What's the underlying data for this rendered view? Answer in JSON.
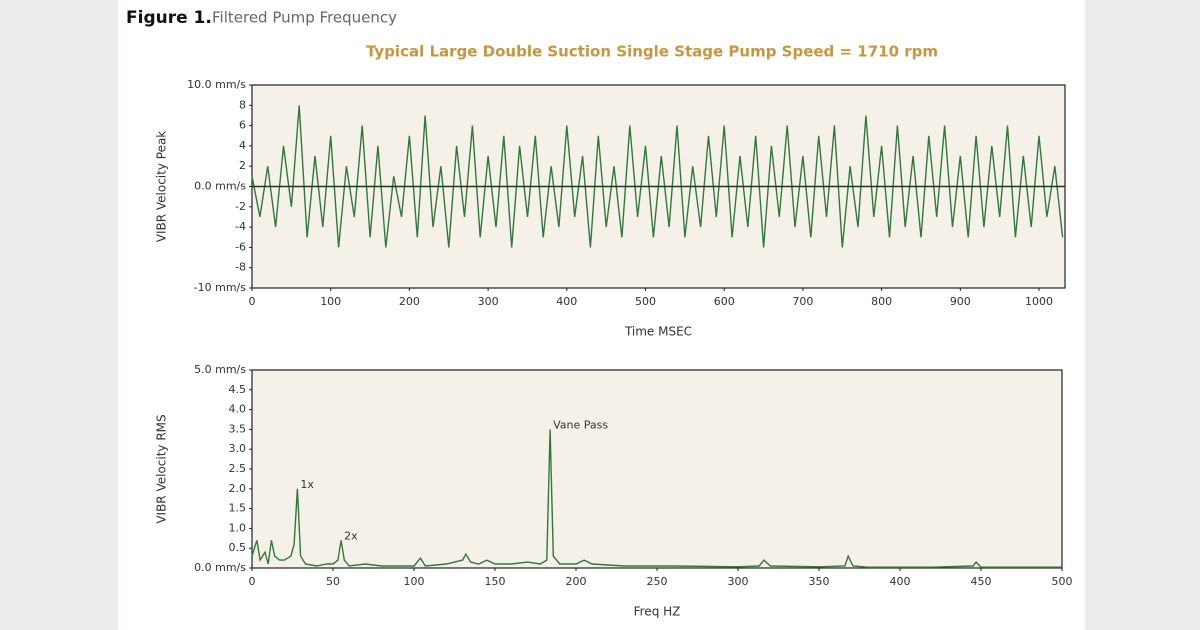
{
  "figure": {
    "label": "Figure 1.",
    "caption": "Filtered Pump Frequency"
  },
  "title": "Typical Large Double Suction Single Stage Pump Speed = 1710 rpm",
  "chart_data": [
    {
      "type": "line",
      "xlabel": "Time MSEC",
      "ylabel": "VIBR Velocity Peak",
      "color": "#2f7a3a",
      "background": "#f5f1e8",
      "zeroline": true,
      "xlim": [
        0,
        1033
      ],
      "xticks": [
        0,
        100,
        200,
        300,
        400,
        500,
        600,
        700,
        800,
        900,
        1000
      ],
      "ylim": [
        -10,
        10
      ],
      "yticks": [
        {
          "value": 10,
          "label": "10.0 mm/s"
        },
        8,
        6,
        4,
        2,
        {
          "value": 0,
          "label": "0.0 mm/s"
        },
        -2,
        -4,
        -6,
        -8,
        {
          "value": -10,
          "label": "-10 mm/s"
        }
      ],
      "x": [
        0,
        10,
        20,
        30,
        40,
        50,
        60,
        70,
        80,
        90,
        100,
        110,
        120,
        130,
        140,
        150,
        160,
        170,
        180,
        190,
        200,
        210,
        220,
        230,
        240,
        250,
        260,
        270,
        280,
        290,
        300,
        310,
        320,
        330,
        340,
        350,
        360,
        370,
        380,
        390,
        400,
        410,
        420,
        430,
        440,
        450,
        460,
        470,
        480,
        490,
        500,
        510,
        520,
        530,
        540,
        550,
        560,
        570,
        580,
        590,
        600,
        610,
        620,
        630,
        640,
        650,
        660,
        670,
        680,
        690,
        700,
        710,
        720,
        730,
        740,
        750,
        760,
        770,
        780,
        790,
        800,
        810,
        820,
        830,
        840,
        850,
        860,
        870,
        880,
        890,
        900,
        910,
        920,
        930,
        940,
        950,
        960,
        970,
        980,
        990,
        1000,
        1010,
        1020,
        1030
      ],
      "values": [
        1,
        -3,
        2,
        -4,
        4,
        -2,
        8,
        -5,
        3,
        -4,
        5,
        -6,
        2,
        -3,
        6,
        -5,
        4,
        -6,
        1,
        -3,
        5,
        -5,
        7,
        -4,
        2,
        -6,
        4,
        -3,
        6,
        -5,
        3,
        -4,
        5,
        -6,
        4,
        -3,
        5,
        -5,
        2,
        -4,
        6,
        -3,
        3,
        -6,
        5,
        -4,
        2,
        -5,
        6,
        -3,
        4,
        -5,
        3,
        -4,
        6,
        -5,
        2,
        -4,
        5,
        -3,
        6,
        -5,
        3,
        -4,
        5,
        -6,
        4,
        -3,
        6,
        -4,
        3,
        -5,
        5,
        -3,
        6,
        -6,
        2,
        -4,
        7,
        -3,
        4,
        -5,
        6,
        -4,
        3,
        -5,
        5,
        -3,
        6,
        -4,
        3,
        -5,
        5,
        -4,
        4,
        -3,
        6,
        -5,
        3,
        -4,
        5,
        -3,
        2,
        -5
      ]
    },
    {
      "type": "line",
      "xlabel": "Freq HZ",
      "ylabel": "VIBR Velocity RMS",
      "color": "#2f7a3a",
      "background": "#f5f1e8",
      "zeroline": false,
      "xlim": [
        0,
        500
      ],
      "xticks": [
        0,
        50,
        100,
        150,
        200,
        250,
        300,
        350,
        400,
        450,
        500
      ],
      "ylim": [
        0,
        5
      ],
      "yticks": [
        {
          "value": 0,
          "label": "0.0 mm/s"
        },
        0.5,
        {
          "value": 1,
          "label": "1.0"
        },
        1.5,
        {
          "value": 2,
          "label": "2.0"
        },
        2.5,
        {
          "value": 3,
          "label": "3.0"
        },
        3.5,
        {
          "value": 4,
          "label": "4.0"
        },
        4.5,
        {
          "value": 5,
          "label": "5.0 mm/s"
        }
      ],
      "x": [
        0,
        3,
        5,
        8,
        10,
        12,
        14,
        17,
        20,
        24,
        26,
        28,
        30,
        33,
        40,
        46,
        50,
        53,
        55,
        57,
        60,
        70,
        80,
        100,
        104,
        107,
        120,
        130,
        132,
        135,
        140,
        145,
        150,
        160,
        170,
        178,
        182,
        184,
        186,
        190,
        200,
        205,
        210,
        230,
        260,
        300,
        313,
        316,
        320,
        350,
        366,
        368,
        371,
        380,
        420,
        445,
        447,
        450,
        500
      ],
      "values": [
        0.3,
        0.7,
        0.2,
        0.4,
        0.1,
        0.7,
        0.3,
        0.2,
        0.2,
        0.3,
        0.6,
        2.0,
        0.3,
        0.1,
        0.05,
        0.1,
        0.1,
        0.2,
        0.7,
        0.2,
        0.05,
        0.1,
        0.05,
        0.05,
        0.25,
        0.05,
        0.1,
        0.2,
        0.35,
        0.15,
        0.1,
        0.2,
        0.1,
        0.1,
        0.15,
        0.1,
        0.2,
        3.5,
        0.3,
        0.1,
        0.1,
        0.2,
        0.1,
        0.05,
        0.05,
        0.03,
        0.05,
        0.2,
        0.05,
        0.03,
        0.05,
        0.3,
        0.05,
        0.02,
        0.02,
        0.05,
        0.15,
        0.02,
        0.02
      ],
      "annotations": [
        {
          "text": "1x",
          "x": 28,
          "y": 2.0
        },
        {
          "text": "2x",
          "x": 55,
          "y": 0.7
        },
        {
          "text": "Vane Pass",
          "x": 184,
          "y": 3.5
        }
      ]
    }
  ]
}
